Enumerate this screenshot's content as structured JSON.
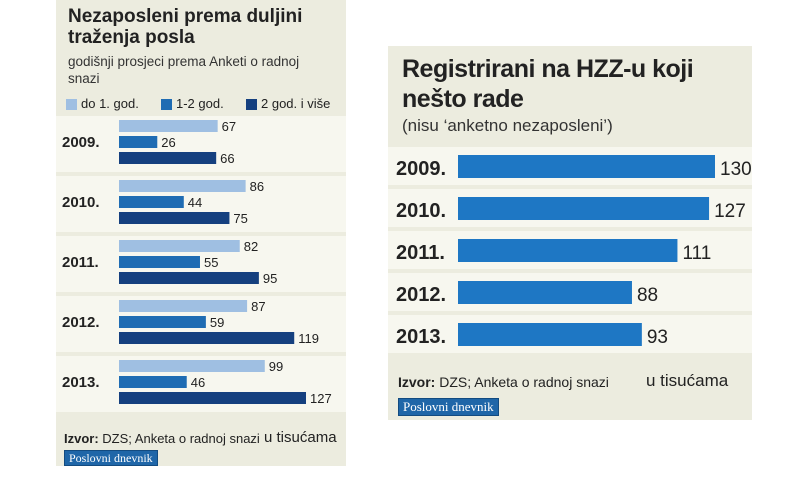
{
  "colors": {
    "light": "#9fbfe2",
    "mid": "#1f6cb3",
    "dark": "#15407f",
    "right_bar": "#1e77c4",
    "panel": "#ececdf",
    "row_alt": "#f7f7ef"
  },
  "left": {
    "title": "Nezaposleni prema duljini traženja posla",
    "subtitle": "godišnji prosjeci prema Anketi o radnoj snazi",
    "source_prefix": "Izvor:",
    "source_text": " DZS; Anketa o radnoj snazi",
    "unit": "u tisućama",
    "logo": "Poslovni dnevnik"
  },
  "right": {
    "title": "Registrirani na HZZ-u koji nešto rade",
    "subtitle": "(nisu ‘anketno nezaposleni’)",
    "source_prefix": "Izvor:",
    "source_text": " DZS; Anketa o radnoj snazi",
    "unit": "u tisućama",
    "logo": "Poslovni dnevnik"
  },
  "chart_data": [
    {
      "type": "bar",
      "orientation": "horizontal",
      "title": "Nezaposleni prema duljini traženja posla",
      "subtitle": "godišnji prosjeci prema Anketi o radnoj snazi",
      "categories": [
        "2009.",
        "2010.",
        "2011.",
        "2012.",
        "2013."
      ],
      "series": [
        {
          "name": "do 1. god.",
          "color": "#9fbfe2",
          "values": [
            67,
            86,
            82,
            87,
            99
          ]
        },
        {
          "name": "1-2 god.",
          "color": "#1f6cb3",
          "values": [
            26,
            44,
            55,
            59,
            46
          ]
        },
        {
          "name": "2 god. i više",
          "color": "#15407f",
          "values": [
            66,
            75,
            95,
            119,
            127
          ]
        }
      ],
      "xlabel": "u tisućama",
      "ylabel": "",
      "xlim": [
        0,
        127
      ],
      "legend": "top",
      "grid": false,
      "source": "Izvor: DZS; Anketa o radnoj snazi"
    },
    {
      "type": "bar",
      "orientation": "horizontal",
      "title": "Registrirani na HZZ-u koji nešto rade",
      "subtitle": "(nisu ‘anketno nezaposleni’)",
      "categories": [
        "2009.",
        "2010.",
        "2011.",
        "2012.",
        "2013."
      ],
      "series": [
        {
          "name": "Registrirani",
          "color": "#1e77c4",
          "values": [
            130,
            127,
            111,
            88,
            93
          ]
        }
      ],
      "xlabel": "u tisućama",
      "ylabel": "",
      "xlim": [
        0,
        130
      ],
      "legend": "none",
      "grid": false,
      "source": "Izvor: DZS; Anketa o radnoj snazi"
    }
  ]
}
